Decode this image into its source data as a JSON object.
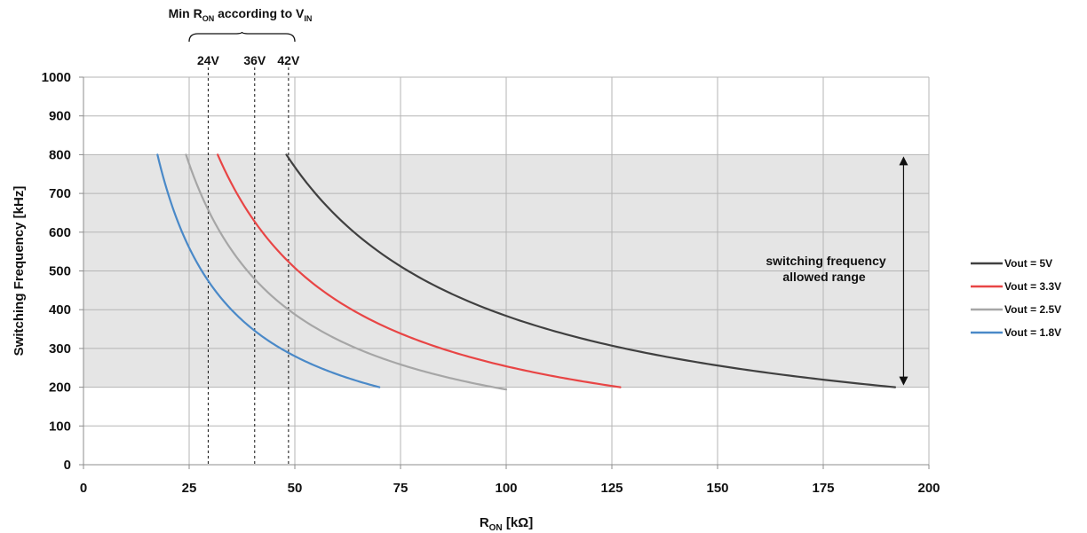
{
  "chart_data": {
    "type": "line",
    "title": "",
    "xlabel": {
      "main": "R",
      "sub": "ON",
      "unit": "[kΩ]"
    },
    "ylabel": "Switching Frequency   [kHz]",
    "xlim": [
      0,
      200
    ],
    "ylim": [
      0,
      1000
    ],
    "x_ticks": [
      0,
      25,
      50,
      75,
      100,
      125,
      150,
      175,
      200
    ],
    "y_ticks": [
      0,
      100,
      200,
      300,
      400,
      500,
      600,
      700,
      800,
      900,
      1000
    ],
    "grid": true,
    "legend_position": "right",
    "allowed_range": {
      "y_min": 200,
      "y_max": 800,
      "label_line1": "switching frequency",
      "label_line2": "allowed range",
      "arrow_x": 194
    },
    "min_ron_annotation": {
      "text_main": "Min R",
      "text_sub": "ON",
      "text_mid": " according to V",
      "text_sub2": "IN",
      "brace_x_range": [
        25,
        50
      ],
      "markers": [
        {
          "label": "24V",
          "x": 29.5
        },
        {
          "label": "36V",
          "x": 40.5
        },
        {
          "label": "42V",
          "x": 48.5
        }
      ]
    },
    "series": [
      {
        "name": "Vout = 5V",
        "color": "#404040",
        "k": 38400,
        "x_min": 48,
        "x_max": 192
      },
      {
        "name": "Vout = 3.3V",
        "color": "#e84545",
        "k": 25400,
        "x_min": 31.75,
        "x_max": 127
      },
      {
        "name": "Vout = 2.5V",
        "color": "#a6a6a6",
        "k": 19400,
        "x_min": 24.25,
        "x_max": 100
      },
      {
        "name": "Vout = 1.8V",
        "color": "#4a89c8",
        "k": 14000,
        "x_min": 17.5,
        "x_max": 70
      }
    ]
  }
}
